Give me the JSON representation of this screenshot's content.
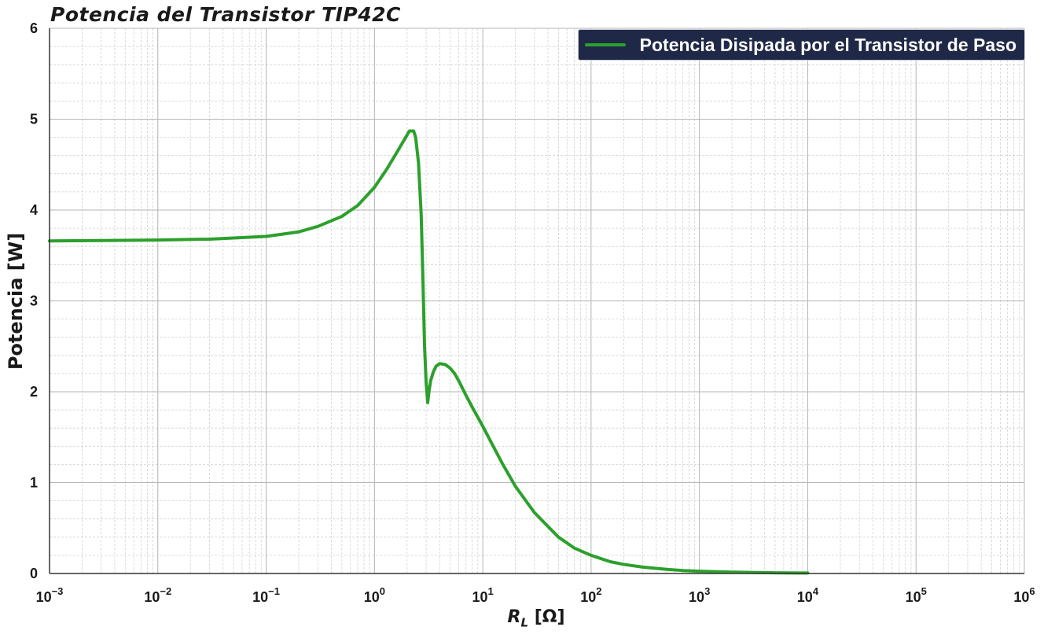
{
  "chart_data": {
    "type": "line",
    "title": "Potencia del Transistor TIP42C",
    "xlabel_main": "R",
    "xlabel_sub": "L",
    "xlabel_unit": "[Ω]",
    "ylabel": "Potencia [W]",
    "xscale": "log",
    "xlim": [
      0.001,
      1000000
    ],
    "ylim": [
      0,
      6
    ],
    "x_ticks": [
      {
        "base": "10",
        "exp": "−3"
      },
      {
        "base": "10",
        "exp": "−2"
      },
      {
        "base": "10",
        "exp": "−1"
      },
      {
        "base": "10",
        "exp": "0"
      },
      {
        "base": "10",
        "exp": "1"
      },
      {
        "base": "10",
        "exp": "2"
      },
      {
        "base": "10",
        "exp": "3"
      },
      {
        "base": "10",
        "exp": "4"
      },
      {
        "base": "10",
        "exp": "5"
      },
      {
        "base": "10",
        "exp": "6"
      }
    ],
    "y_ticks": [
      "0",
      "1",
      "2",
      "3",
      "4",
      "5",
      "6"
    ],
    "grid": "major and minor",
    "legend_position": "top-right",
    "series": [
      {
        "name": "Potencia Disipada por el Transistor de Paso",
        "color": "#2ca02c",
        "x": [
          0.001,
          0.003,
          0.01,
          0.03,
          0.1,
          0.2,
          0.3,
          0.5,
          0.7,
          1.0,
          1.3,
          1.6,
          1.9,
          2.1,
          2.3,
          2.4,
          2.55,
          2.7,
          2.8,
          2.9,
          3.0,
          3.1,
          3.2,
          3.3,
          3.5,
          3.7,
          4.0,
          4.5,
          5.0,
          5.5,
          6.0,
          7.0,
          8.0,
          10,
          15,
          20,
          30,
          50,
          70,
          100,
          150,
          200,
          300,
          500,
          700,
          1000,
          2000,
          5000,
          10000
        ],
        "y": [
          3.66,
          3.665,
          3.67,
          3.68,
          3.71,
          3.76,
          3.82,
          3.93,
          4.05,
          4.25,
          4.45,
          4.63,
          4.78,
          4.87,
          4.87,
          4.8,
          4.52,
          3.95,
          3.25,
          2.5,
          2.1,
          1.88,
          2.02,
          2.12,
          2.22,
          2.28,
          2.31,
          2.3,
          2.26,
          2.2,
          2.12,
          1.96,
          1.83,
          1.62,
          1.22,
          0.96,
          0.67,
          0.4,
          0.28,
          0.2,
          0.13,
          0.1,
          0.07,
          0.045,
          0.033,
          0.025,
          0.015,
          0.008,
          0.005
        ]
      }
    ]
  }
}
